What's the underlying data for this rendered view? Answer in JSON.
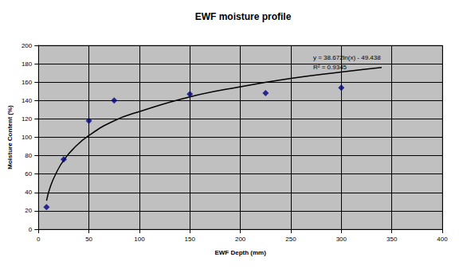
{
  "chart_data": {
    "type": "scatter",
    "title": "EWF moisture profile",
    "x_label": "EWF Depth (mm)",
    "y_label": "Moisture Content (%)",
    "series": [
      {
        "type": "scatter",
        "color": "#000080",
        "marker": "diamond",
        "x": [
          8,
          25,
          50,
          75,
          150,
          225,
          300
        ],
        "values": [
          24,
          76,
          118,
          140,
          147,
          148,
          154
        ]
      },
      {
        "type": "line",
        "color": "#000000",
        "line_style": "solid",
        "x": [
          8,
          12,
          18,
          25,
          35,
          50,
          75,
          100,
          150,
          200,
          250,
          300,
          340
        ],
        "values": [
          31,
          47,
          62,
          75,
          88,
          102,
          118,
          128,
          144,
          155,
          164,
          171,
          176
        ]
      }
    ],
    "annotations": [
      "y = 38.672ln(x) - 49.438",
      "R² = 0.9345"
    ],
    "xlim": [
      0,
      400
    ],
    "xticks": [
      0,
      50,
      100,
      150,
      200,
      250,
      300,
      350,
      400
    ],
    "ylim": [
      0,
      200
    ],
    "yticks": [
      0,
      20,
      40,
      60,
      80,
      100,
      120,
      140,
      160,
      180,
      200
    ],
    "grid": true
  }
}
